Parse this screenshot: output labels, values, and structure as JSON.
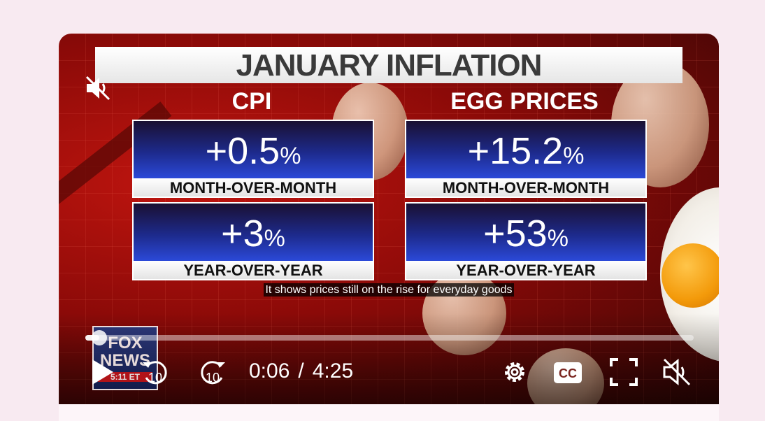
{
  "graphic": {
    "title": "JANUARY INFLATION",
    "columns": [
      {
        "heading": "CPI",
        "stats": [
          {
            "value": "+0.5",
            "unit": "%",
            "label": "MONTH-OVER-MONTH"
          },
          {
            "value": "+3",
            "unit": "%",
            "label": "YEAR-OVER-YEAR"
          }
        ]
      },
      {
        "heading": "EGG PRICES",
        "stats": [
          {
            "value": "+15.2",
            "unit": "%",
            "label": "MONTH-OVER-MONTH"
          },
          {
            "value": "+53",
            "unit": "%",
            "label": "YEAR-OVER-YEAR"
          }
        ]
      }
    ]
  },
  "caption": "It shows prices still on the rise for everyday goods",
  "logo": {
    "line1": "FOX",
    "line2": "NEWS",
    "line3": "5:11 ET"
  },
  "player": {
    "current_time": "0:06",
    "separator": "/",
    "duration": "4:25",
    "progress_fraction": 0.023,
    "rewind_seconds": "10",
    "forward_seconds": "10",
    "cc_label": "CC",
    "icons": {
      "play": "play-icon",
      "rewind": "rewind-10-icon",
      "forward": "forward-10-icon",
      "settings": "gear-icon",
      "captions": "closed-captions-icon",
      "fullscreen": "fullscreen-icon",
      "mute": "muted-speaker-icon"
    }
  }
}
